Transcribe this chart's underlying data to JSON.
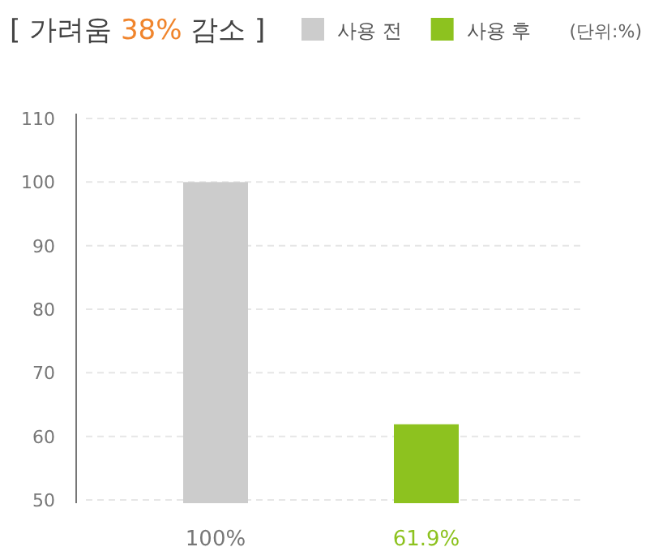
{
  "chart_data": {
    "type": "bar",
    "title": "[ 가려움 38% 감소 ]",
    "annotations": [
      "(단위:%)"
    ],
    "categories": [
      null,
      null
    ],
    "series": [
      {
        "name": "사용 전",
        "color": "#cccccc",
        "values": [
          100,
          null
        ],
        "value_labels": [
          "100%",
          null
        ]
      },
      {
        "name": "사용 후",
        "color": "#8dc21f",
        "values": [
          null,
          61.9
        ],
        "value_labels": [
          null,
          "61.9%"
        ]
      }
    ],
    "ylim": [
      50,
      110
    ],
    "yticks": [
      50,
      60,
      70,
      80,
      90,
      100,
      110
    ],
    "grid": "y",
    "legend": "top right"
  }
}
